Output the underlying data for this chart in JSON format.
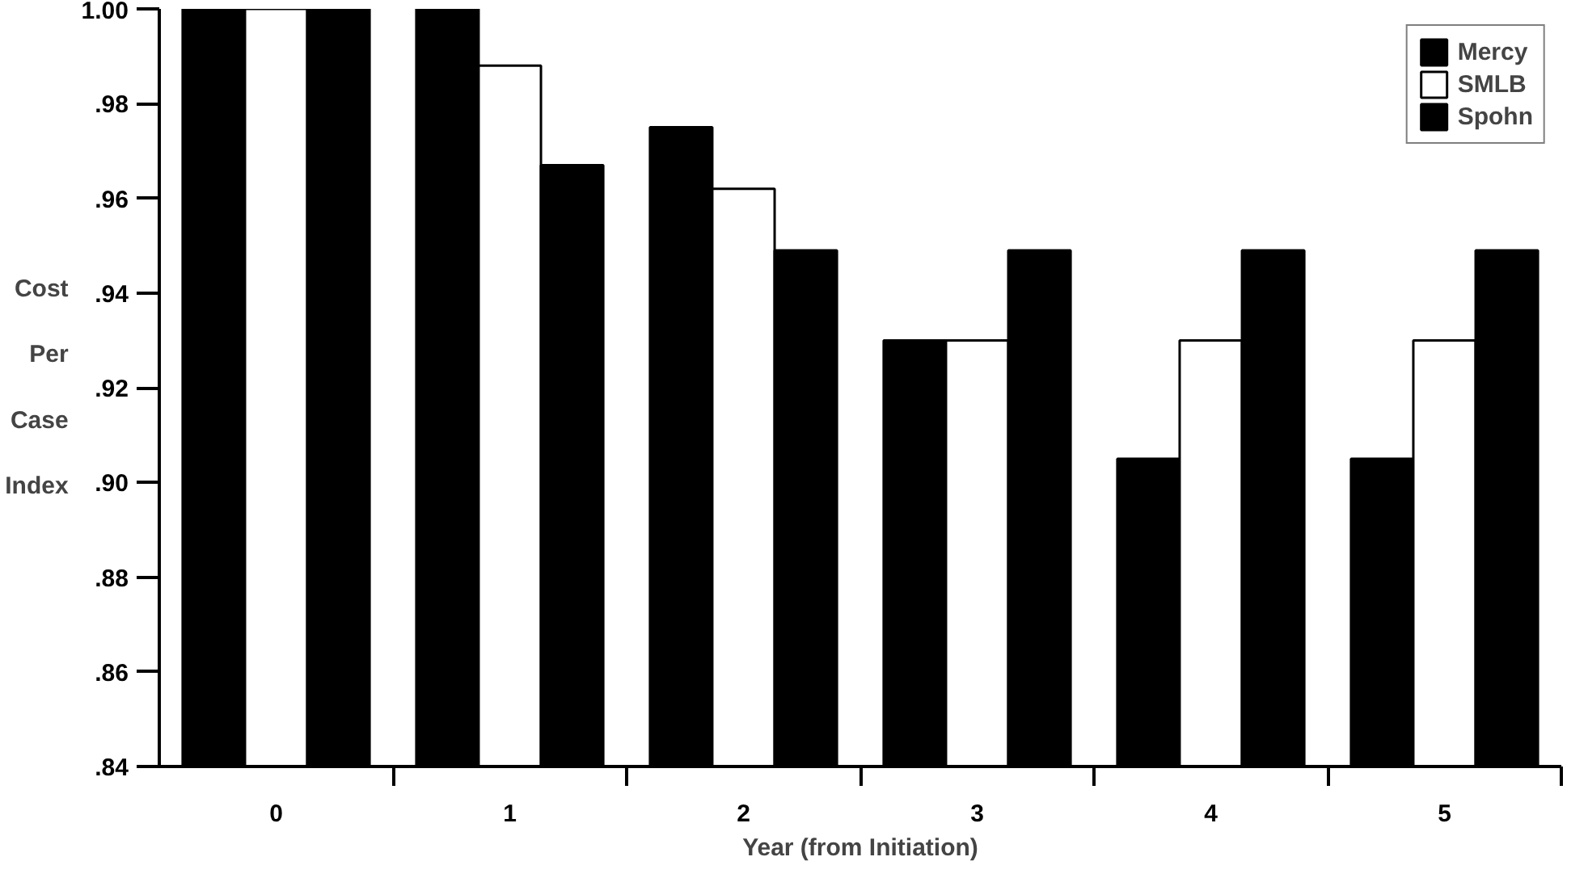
{
  "chart_data": {
    "type": "bar",
    "xlabel": "Year (from Initiation)",
    "ylabel": "Cost Per Case Index",
    "categories": [
      "0",
      "1",
      "2",
      "3",
      "4",
      "5"
    ],
    "series": [
      {
        "name": "Mercy",
        "color": "#000000",
        "values": [
          1.0,
          1.0,
          0.975,
          0.93,
          0.905,
          0.905
        ]
      },
      {
        "name": "SMLB",
        "color": "#ffffff",
        "values": [
          1.0,
          0.988,
          0.962,
          0.93,
          0.93,
          0.93
        ]
      },
      {
        "name": "Spohn",
        "color": "#000000",
        "values": [
          1.0,
          0.967,
          0.949,
          0.949,
          0.949,
          0.949
        ]
      }
    ],
    "ylim": [
      0.84,
      1.0
    ],
    "yticks": [
      {
        "value": 0.84,
        "label": ".84"
      },
      {
        "value": 0.86,
        "label": ".86"
      },
      {
        "value": 0.88,
        "label": ".88"
      },
      {
        "value": 0.9,
        "label": ".90"
      },
      {
        "value": 0.92,
        "label": ".92"
      },
      {
        "value": 0.94,
        "label": ".94"
      },
      {
        "value": 0.96,
        "label": ".96"
      },
      {
        "value": 0.98,
        "label": ".98"
      },
      {
        "value": 1.0,
        "label": "1.00"
      }
    ],
    "grid": false,
    "legend": "top right"
  }
}
